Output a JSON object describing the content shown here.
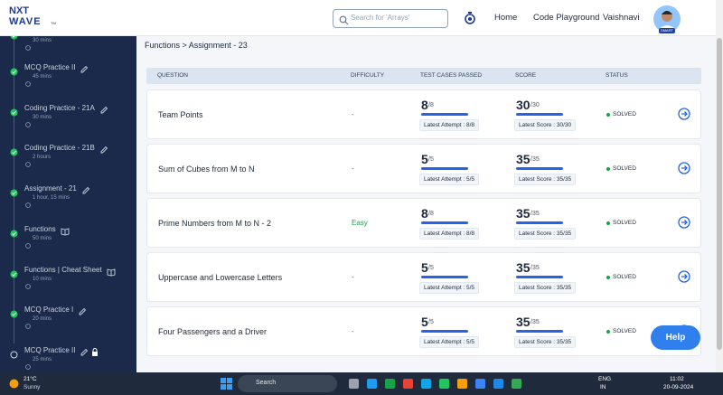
{
  "header": {
    "logo": {
      "top": "NXT",
      "bottom": "WAVE",
      "mark": "TM"
    },
    "search_placeholder": "Search for 'Arrays'",
    "nav": [
      "Home",
      "Code Playground"
    ],
    "user": "Vaishnavi",
    "avatar_badge": "SMART"
  },
  "sidebar": {
    "items": [
      {
        "title": null,
        "duration": "30 mins",
        "icon": null,
        "status": "done"
      },
      {
        "title": "MCQ Practice II",
        "duration": "45 mins",
        "icon": "edit",
        "status": "done"
      },
      {
        "title": "Coding Practice - 21A",
        "duration": "30 mins",
        "icon": "edit",
        "status": "done"
      },
      {
        "title": "Coding Practice - 21B",
        "duration": "2 hours",
        "icon": "edit",
        "status": "done"
      },
      {
        "title": "Assignment - 21",
        "duration": "1 hour, 15 mins",
        "icon": "edit",
        "status": "done"
      },
      {
        "title": "Functions",
        "duration": "50 mins",
        "icon": "book",
        "status": "done"
      },
      {
        "title": "Functions | Cheat Sheet",
        "duration": "10 mins",
        "icon": "book",
        "status": "done"
      },
      {
        "title": "MCQ Practice I",
        "duration": "20 mins",
        "icon": "edit",
        "status": "done"
      },
      {
        "title": "MCQ Practice II",
        "duration": "25 mins",
        "icon": "lock",
        "status": "open"
      }
    ]
  },
  "breadcrumb": "Functions > Assignment - 23",
  "table": {
    "columns": [
      "QUESTION",
      "DIFFICULTY",
      "TEST CASES PASSED",
      "SCORE",
      "STATUS"
    ],
    "rows": [
      {
        "question": "Team Points",
        "difficulty": "-",
        "passed": "8",
        "total": "/8",
        "attempt": "Latest Attempt : 8/8",
        "score": "30",
        "max": "/30",
        "latest_score": "Latest Score : 30/30",
        "status": "SOLVED"
      },
      {
        "question": "Sum of Cubes from M to N",
        "difficulty": "-",
        "passed": "5",
        "total": "/5",
        "attempt": "Latest Attempt : 5/5",
        "score": "35",
        "max": "/35",
        "latest_score": "Latest Score : 35/35",
        "status": "SOLVED"
      },
      {
        "question": "Prime Numbers from M to N - 2",
        "difficulty": "Easy",
        "passed": "8",
        "total": "/8",
        "attempt": "Latest Attempt : 8/8",
        "score": "35",
        "max": "/35",
        "latest_score": "Latest Score : 35/35",
        "status": "SOLVED"
      },
      {
        "question": "Uppercase and Lowercase Letters",
        "difficulty": "-",
        "passed": "5",
        "total": "/5",
        "attempt": "Latest Attempt : 5/5",
        "score": "35",
        "max": "/35",
        "latest_score": "Latest Score : 35/35",
        "status": "SOLVED"
      },
      {
        "question": "Four Passengers and a Driver",
        "difficulty": "-",
        "passed": "5",
        "total": "/5",
        "attempt": "Latest Attempt : 5/5",
        "score": "35",
        "max": "/35",
        "latest_score": "Latest Score : 35/35",
        "status": "SOLVED"
      }
    ]
  },
  "help": "Help",
  "taskbar": {
    "temperature": "21°C",
    "weather": "Sunny",
    "search": "Search",
    "lang": "ENG",
    "region": "IN",
    "time": "11:02",
    "date": "20-09-2024"
  }
}
